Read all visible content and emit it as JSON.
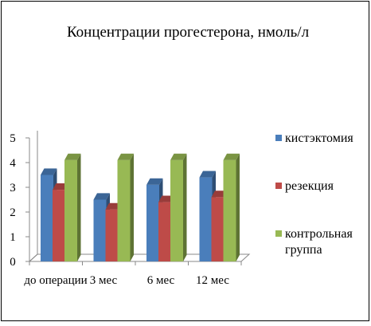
{
  "chart_data": {
    "type": "bar",
    "title": "Концентрации прогестерона, нмоль/л",
    "xlabel": "",
    "ylabel": "",
    "categories": [
      "до операции",
      "3 мес",
      "6 мес",
      "12 мес"
    ],
    "ylim": [
      0,
      5
    ],
    "yticks": [
      "0",
      "1",
      "2",
      "3",
      "4",
      "5"
    ],
    "grid": false,
    "legend_position": "right",
    "series": [
      {
        "name": "кистэктомия",
        "values": [
          3.5,
          2.5,
          3.1,
          3.4
        ],
        "color": "#4A7EBB"
      },
      {
        "name": "резекция",
        "values": [
          2.9,
          2.1,
          2.4,
          2.6
        ],
        "color": "#BE4B48"
      },
      {
        "name": "контрольная группа",
        "name_lines": [
          "контрольная",
          "группа"
        ],
        "values": [
          4.1,
          4.1,
          4.1,
          4.1
        ],
        "color": "#98B954"
      }
    ]
  }
}
